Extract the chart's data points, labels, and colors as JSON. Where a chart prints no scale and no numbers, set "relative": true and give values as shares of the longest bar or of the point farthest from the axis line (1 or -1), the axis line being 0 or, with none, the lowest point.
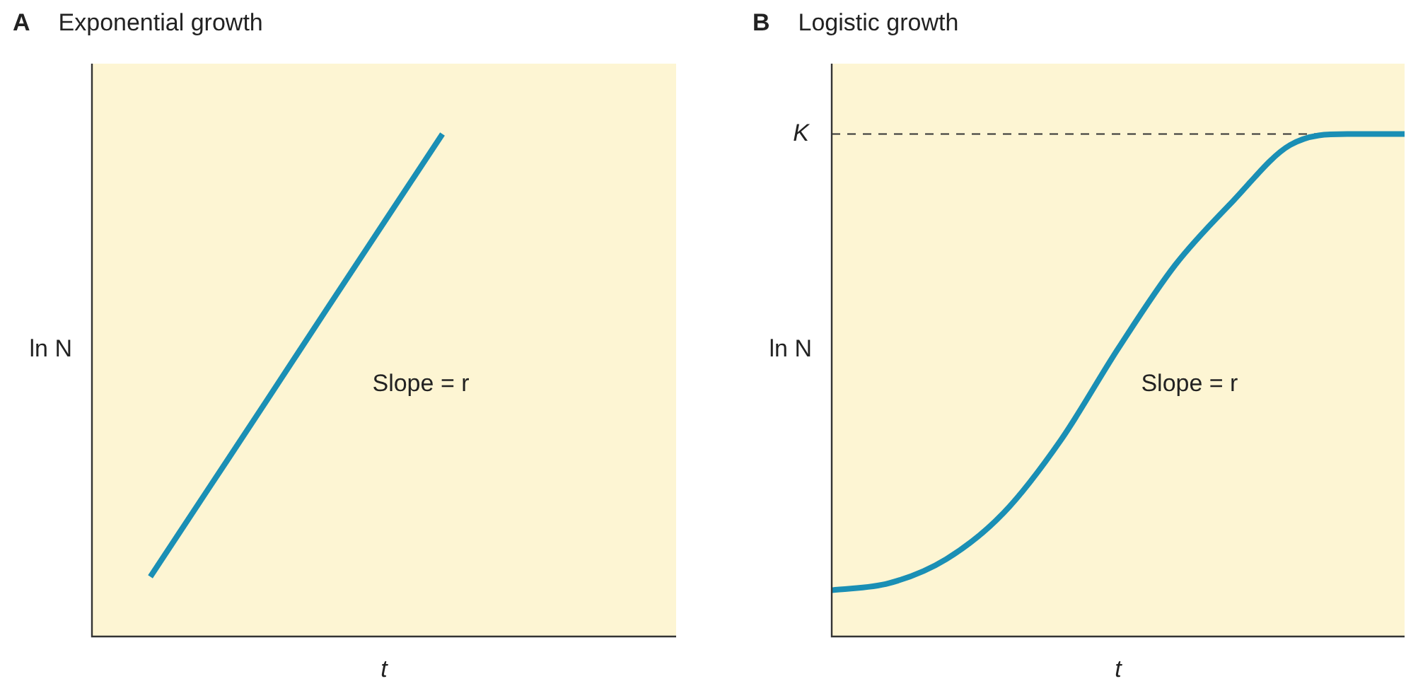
{
  "chart_data": [
    {
      "type": "line",
      "title": "A",
      "subtitle": "Exponential growth",
      "xlabel": "t",
      "ylabel": "ln N",
      "relative": true,
      "legend": false,
      "marker": "none",
      "line_style": "solid",
      "categories": [
        null,
        null,
        null,
        null,
        null,
        null,
        null,
        null,
        null,
        null,
        null
      ],
      "series": [
        {
          "color": "#1a8fb5",
          "values": [
            null,
            0.119,
            0.295,
            0.471,
            0.648,
            0.824,
            1,
            null,
            null,
            null,
            null
          ]
        }
      ],
      "annotations": [
        "Slope = r"
      ]
    },
    {
      "type": "line",
      "title": "B",
      "subtitle": "Logistic growth",
      "xlabel": "t",
      "ylabel": "ln N",
      "relative": true,
      "legend": false,
      "marker": "none",
      "line_style": "solid",
      "categories": [
        null,
        null,
        null,
        null,
        null,
        null,
        null,
        null,
        null,
        null,
        null
      ],
      "series": [
        {
          "color": "#1a8fb5",
          "values": [
            0.092,
            0.106,
            0.154,
            0.246,
            0.391,
            0.573,
            0.74,
            0.866,
            0.978,
            1,
            1
          ]
        }
      ],
      "ref_lines": [
        {
          "axis": "y",
          "value": 1,
          "label": "K",
          "line_style": "dashed",
          "color": "#333333"
        }
      ],
      "annotations": [
        "Slope = r"
      ]
    }
  ]
}
